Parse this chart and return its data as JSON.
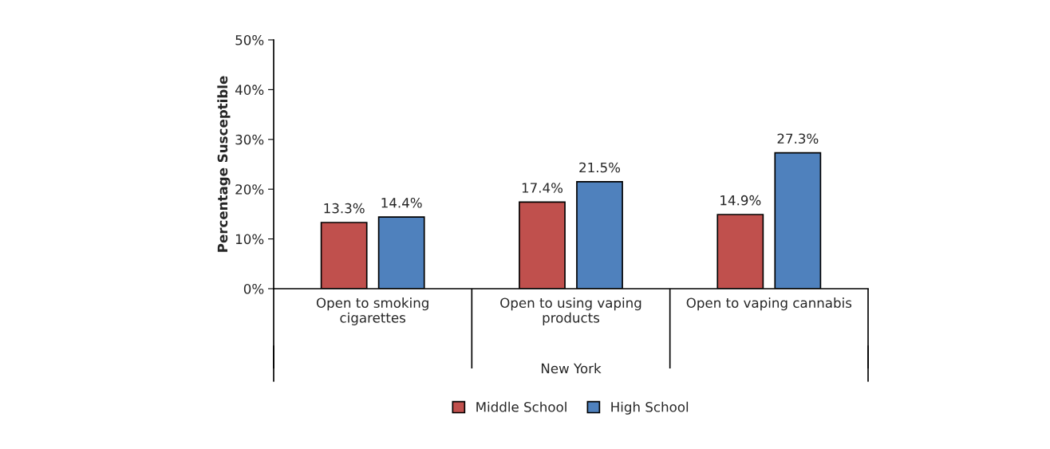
{
  "chart_data": {
    "type": "bar",
    "ylabel": "Percentage Susceptible",
    "annotations": [
      "New York"
    ],
    "categories": [
      "Open to smoking\ncigarettes",
      "Open to using vaping\nproducts",
      "Open to vaping cannabis"
    ],
    "series": [
      {
        "name": "Middle School",
        "color": "#c0504d",
        "values": [
          13.3,
          17.4,
          14.9
        ],
        "value_labels": [
          "13.3%",
          "17.4%",
          "14.9%"
        ]
      },
      {
        "name": "High School",
        "color": "#4f81bd",
        "values": [
          14.4,
          21.5,
          27.3
        ],
        "value_labels": [
          "14.4%",
          "21.5%",
          "27.3%"
        ]
      }
    ],
    "ylim": [
      0,
      50
    ],
    "yticks": [
      {
        "value": 0,
        "label": "0%"
      },
      {
        "value": 10,
        "label": "10%"
      },
      {
        "value": 20,
        "label": "20%"
      },
      {
        "value": 30,
        "label": "30%"
      },
      {
        "value": 40,
        "label": "40%"
      },
      {
        "value": 50,
        "label": "50%"
      }
    ],
    "grid": false,
    "legend": "bottom"
  }
}
